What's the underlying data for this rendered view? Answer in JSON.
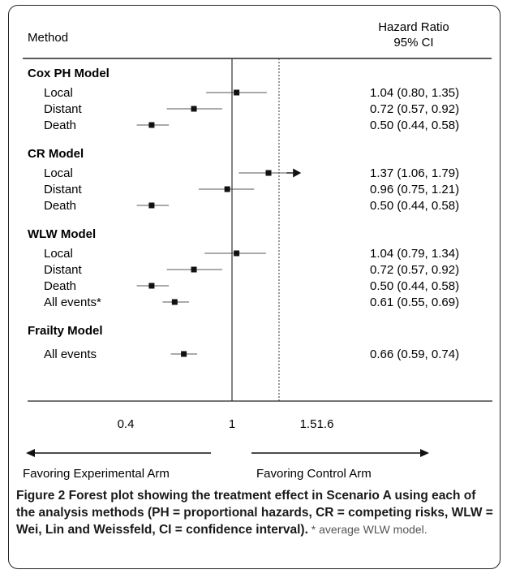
{
  "chart_data": {
    "type": "forest",
    "headers": {
      "method": "Method",
      "hr_line1": "Hazard Ratio",
      "hr_line2": "95% CI"
    },
    "x_axis": {
      "scale": "log",
      "ticks": [
        {
          "value": 0.4,
          "label": "0.4"
        },
        {
          "value": 1,
          "label": "1"
        },
        {
          "value": 1.5,
          "label": "1.5"
        },
        {
          "value": 1.6,
          "label": "1.6"
        }
      ],
      "reference_line": 1,
      "dotted_line": 1.5
    },
    "groups": [
      {
        "name": "Cox PH Model",
        "rows": [
          {
            "label": "Local",
            "hr": 1.04,
            "lo": 0.8,
            "hi": 1.35,
            "text": "1.04 (0.80, 1.35)"
          },
          {
            "label": "Distant",
            "hr": 0.72,
            "lo": 0.57,
            "hi": 0.92,
            "text": "0.72 (0.57, 0.92)"
          },
          {
            "label": "Death",
            "hr": 0.5,
            "lo": 0.44,
            "hi": 0.58,
            "text": "0.50 (0.44, 0.58)"
          }
        ]
      },
      {
        "name": "CR Model",
        "rows": [
          {
            "label": "Local",
            "hr": 1.37,
            "lo": 1.06,
            "hi": 1.79,
            "text": "1.37 (1.06, 1.79)",
            "arrow": true
          },
          {
            "label": "Distant",
            "hr": 0.96,
            "lo": 0.75,
            "hi": 1.21,
            "text": "0.96 (0.75, 1.21)"
          },
          {
            "label": "Death",
            "hr": 0.5,
            "lo": 0.44,
            "hi": 0.58,
            "text": "0.50 (0.44, 0.58)"
          }
        ]
      },
      {
        "name": "WLW Model",
        "rows": [
          {
            "label": "Local",
            "hr": 1.04,
            "lo": 0.79,
            "hi": 1.34,
            "text": "1.04 (0.79, 1.34)"
          },
          {
            "label": "Distant",
            "hr": 0.72,
            "lo": 0.57,
            "hi": 0.92,
            "text": "0.72 (0.57, 0.92)"
          },
          {
            "label": "Death",
            "hr": 0.5,
            "lo": 0.44,
            "hi": 0.58,
            "text": "0.50 (0.44, 0.58)"
          },
          {
            "label": "All events*",
            "hr": 0.61,
            "lo": 0.55,
            "hi": 0.69,
            "text": "0.61 (0.55, 0.69)"
          }
        ]
      },
      {
        "name": "Frailty Model",
        "rows": [
          {
            "label": "All events",
            "hr": 0.66,
            "lo": 0.59,
            "hi": 0.74,
            "text": "0.66 (0.59, 0.74)"
          }
        ]
      }
    ],
    "favoring_left": "Favoring Experimental Arm",
    "favoring_right": "Favoring Control Arm"
  },
  "caption": {
    "label": "Figure 2",
    "text": " Forest plot showing the treatment effect in Scenario A using each of the analysis methods (PH = proportional hazards, CR = competing risks, WLW = Wei, Lin and Weissfeld, CI = confidence interval).",
    "note": " * average WLW model."
  }
}
